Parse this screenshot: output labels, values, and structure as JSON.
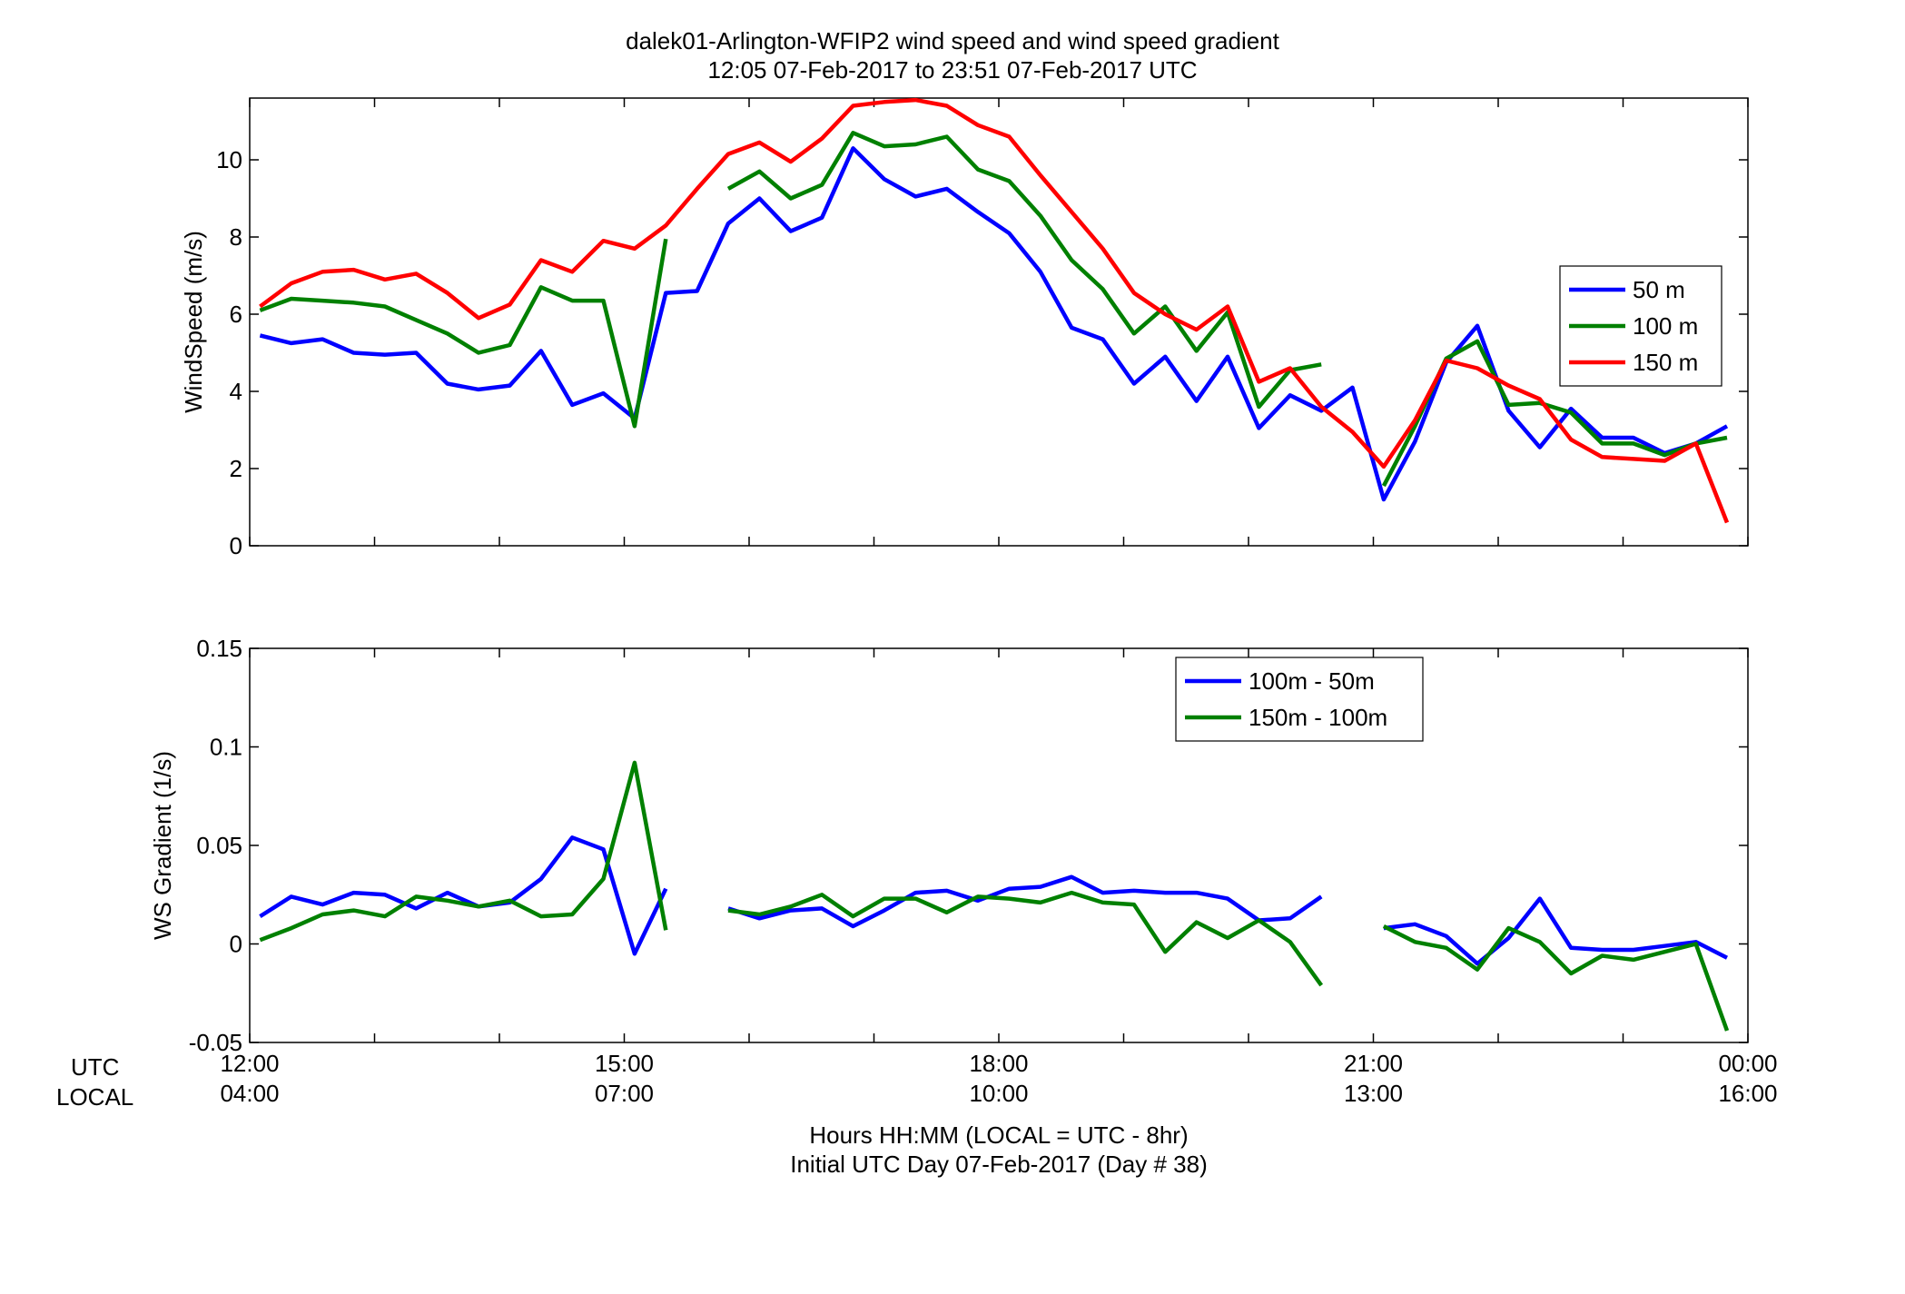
{
  "header": {
    "title_line1": "dalek01-Arlington-WFIP2  wind speed and wind speed gradient",
    "title_line2": "12:05 07-Feb-2017 to 23:51 07-Feb-2017  UTC"
  },
  "footer": {
    "utc_label": "UTC",
    "local_label": "LOCAL",
    "xlabel_line1": "Hours HH:MM  (LOCAL = UTC - 8hr)",
    "xlabel_line2": "Initial UTC Day 07-Feb-2017 (Day # 38)"
  },
  "chart_data": [
    {
      "type": "line",
      "title": "dalek01-Arlington-WFIP2  wind speed and wind speed gradient",
      "ylabel": "WindSpeed (m/s)",
      "xlim": [
        12.0,
        24.0
      ],
      "ylim": [
        0,
        11.6
      ],
      "yticks": [
        0,
        2,
        4,
        6,
        8,
        10
      ],
      "ytick_labels": [
        "0",
        "2",
        "4",
        "6",
        "8",
        "10"
      ],
      "grid": false,
      "legend_position": "right",
      "x": [
        12.083,
        12.333,
        12.583,
        12.833,
        13.083,
        13.333,
        13.583,
        13.833,
        14.083,
        14.333,
        14.583,
        14.833,
        15.083,
        15.333,
        15.583,
        15.833,
        16.083,
        16.333,
        16.583,
        16.833,
        17.083,
        17.333,
        17.583,
        17.833,
        18.083,
        18.333,
        18.583,
        18.833,
        19.083,
        19.333,
        19.583,
        19.833,
        20.083,
        20.333,
        20.583,
        20.833,
        21.083,
        21.333,
        21.583,
        21.833,
        22.083,
        22.333,
        22.583,
        22.833,
        23.083,
        23.333,
        23.583,
        23.833
      ],
      "series": [
        {
          "name": "50 m",
          "color": "#0000ff",
          "values": [
            5.45,
            5.25,
            5.35,
            5.0,
            4.95,
            5.0,
            4.2,
            4.05,
            4.15,
            5.05,
            3.65,
            3.95,
            3.3,
            6.55,
            6.6,
            8.35,
            9.0,
            8.15,
            8.5,
            10.3,
            9.5,
            9.05,
            9.25,
            8.65,
            8.1,
            7.1,
            5.65,
            5.35,
            4.2,
            4.9,
            3.75,
            4.9,
            3.05,
            3.9,
            3.5,
            4.1,
            1.2,
            2.7,
            4.75,
            5.7,
            3.5,
            2.55,
            3.55,
            2.8,
            2.8,
            2.4,
            2.65,
            3.1
          ]
        },
        {
          "name": "100 m",
          "color": "#008000",
          "values": [
            6.1,
            6.4,
            6.35,
            6.3,
            6.2,
            5.85,
            5.5,
            5.0,
            5.2,
            6.7,
            6.35,
            6.35,
            3.1,
            7.95,
            null,
            9.25,
            9.7,
            9.0,
            9.35,
            10.7,
            10.35,
            10.4,
            10.6,
            9.75,
            9.45,
            8.55,
            7.4,
            6.65,
            5.5,
            6.2,
            5.05,
            6.05,
            3.6,
            4.55,
            4.7,
            null,
            1.55,
            3.1,
            4.85,
            5.3,
            3.65,
            3.7,
            3.45,
            2.65,
            2.65,
            2.35,
            2.65,
            2.8
          ]
        },
        {
          "name": "150 m",
          "color": "#ff0000",
          "values": [
            6.2,
            6.8,
            7.1,
            7.15,
            6.9,
            7.05,
            6.55,
            5.9,
            6.25,
            7.4,
            7.1,
            7.9,
            7.7,
            8.3,
            9.25,
            10.15,
            10.45,
            9.95,
            10.55,
            11.4,
            11.5,
            11.55,
            11.4,
            10.9,
            10.6,
            9.6,
            8.65,
            7.7,
            6.55,
            6.0,
            5.6,
            6.2,
            4.25,
            4.6,
            3.6,
            2.95,
            2.05,
            3.25,
            4.8,
            4.6,
            4.15,
            3.8,
            2.75,
            2.3,
            2.25,
            2.2,
            2.65,
            0.6
          ]
        }
      ]
    },
    {
      "type": "line",
      "ylabel": "WS Gradient (1/s)",
      "xlim": [
        12.0,
        24.0
      ],
      "ylim": [
        -0.05,
        0.15
      ],
      "yticks": [
        -0.05,
        0,
        0.05,
        0.1,
        0.15
      ],
      "ytick_labels": [
        "-0.05",
        "0",
        "0.05",
        "0.1",
        "0.15"
      ],
      "xticks": [
        12,
        15,
        18,
        21,
        24
      ],
      "xtick_labels_utc": [
        "12:00",
        "15:00",
        "18:00",
        "21:00",
        "00:00"
      ],
      "xtick_labels_local": [
        "04:00",
        "07:00",
        "10:00",
        "13:00",
        "16:00"
      ],
      "grid": false,
      "legend_position": "top-right",
      "x": [
        12.083,
        12.333,
        12.583,
        12.833,
        13.083,
        13.333,
        13.583,
        13.833,
        14.083,
        14.333,
        14.583,
        14.833,
        15.083,
        15.333,
        15.583,
        15.833,
        16.083,
        16.333,
        16.583,
        16.833,
        17.083,
        17.333,
        17.583,
        17.833,
        18.083,
        18.333,
        18.583,
        18.833,
        19.083,
        19.333,
        19.583,
        19.833,
        20.083,
        20.333,
        20.583,
        20.833,
        21.083,
        21.333,
        21.583,
        21.833,
        22.083,
        22.333,
        22.583,
        22.833,
        23.083,
        23.333,
        23.583,
        23.833
      ],
      "series": [
        {
          "name": "100m - 50m",
          "color": "#0000ff",
          "values": [
            0.014,
            0.024,
            0.02,
            0.026,
            0.025,
            0.018,
            0.026,
            0.019,
            0.021,
            0.033,
            0.054,
            0.048,
            -0.005,
            0.028,
            null,
            0.018,
            0.013,
            0.017,
            0.018,
            0.009,
            0.017,
            0.026,
            0.027,
            0.022,
            0.028,
            0.029,
            0.034,
            0.026,
            0.027,
            0.026,
            0.026,
            0.023,
            0.012,
            0.013,
            0.024,
            null,
            0.008,
            0.01,
            0.004,
            -0.01,
            0.003,
            0.023,
            -0.002,
            -0.003,
            -0.003,
            -0.001,
            0.001,
            -0.007
          ]
        },
        {
          "name": "150m - 100m",
          "color": "#008000",
          "values": [
            0.002,
            0.008,
            0.015,
            0.017,
            0.014,
            0.024,
            0.022,
            0.019,
            0.022,
            0.014,
            0.015,
            0.033,
            0.092,
            0.007,
            null,
            0.017,
            0.015,
            0.019,
            0.025,
            0.014,
            0.023,
            0.023,
            0.016,
            0.024,
            0.023,
            0.021,
            0.026,
            0.021,
            0.02,
            -0.004,
            0.011,
            0.003,
            0.012,
            0.001,
            -0.021,
            null,
            0.009,
            0.001,
            -0.002,
            -0.013,
            0.008,
            0.001,
            -0.015,
            -0.006,
            -0.008,
            -0.004,
            0.0,
            -0.044
          ]
        }
      ]
    }
  ]
}
